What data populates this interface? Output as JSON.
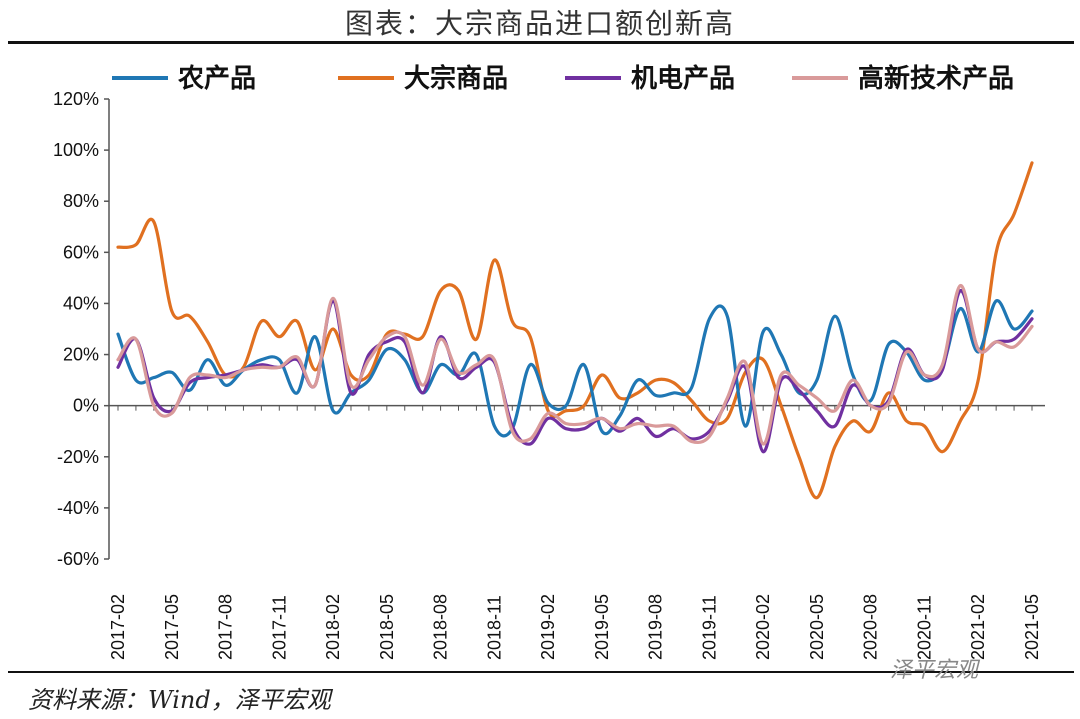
{
  "title": "图表：大宗商品进口额创新高",
  "source": "资料来源：Wind，泽平宏观",
  "watermark": "泽平宏观",
  "chart_data": {
    "type": "line",
    "title": "图表：大宗商品进口额创新高",
    "xlabel": "",
    "ylabel": "",
    "ylim": [
      -60,
      120
    ],
    "y_ticks": [
      "120%",
      "100%",
      "80%",
      "60%",
      "40%",
      "20%",
      "0%",
      "-20%",
      "-40%",
      "-60%"
    ],
    "y_tick_values": [
      120,
      100,
      80,
      60,
      40,
      20,
      0,
      -20,
      -40,
      -60
    ],
    "x_tick_labels": [
      "2017-02",
      "2017-05",
      "2017-08",
      "2017-11",
      "2018-02",
      "2018-05",
      "2018-08",
      "2018-11",
      "2019-02",
      "2019-05",
      "2019-08",
      "2019-11",
      "2020-02",
      "2020-05",
      "2020-08",
      "2020-11",
      "2021-02",
      "2021-05"
    ],
    "legend_placement": "top",
    "grid": false,
    "x": [
      "2017-02",
      "2017-03",
      "2017-04",
      "2017-05",
      "2017-06",
      "2017-07",
      "2017-08",
      "2017-09",
      "2017-10",
      "2017-11",
      "2017-12",
      "2018-01",
      "2018-02",
      "2018-03",
      "2018-04",
      "2018-05",
      "2018-06",
      "2018-07",
      "2018-08",
      "2018-09",
      "2018-10",
      "2018-11",
      "2018-12",
      "2019-01",
      "2019-02",
      "2019-03",
      "2019-04",
      "2019-05",
      "2019-06",
      "2019-07",
      "2019-08",
      "2019-09",
      "2019-10",
      "2019-11",
      "2019-12",
      "2020-01",
      "2020-02",
      "2020-03",
      "2020-04",
      "2020-05",
      "2020-06",
      "2020-07",
      "2020-08",
      "2020-09",
      "2020-10",
      "2020-11",
      "2020-12",
      "2021-01",
      "2021-02",
      "2021-03",
      "2021-04",
      "2021-05"
    ],
    "series": [
      {
        "name": "农产品",
        "color": "#1f77b4",
        "values": [
          28,
          10,
          11,
          13,
          6,
          18,
          8,
          14,
          18,
          18,
          5,
          27,
          -2,
          5,
          10,
          22,
          18,
          5,
          16,
          12,
          20,
          -8,
          -9,
          16,
          1,
          0,
          16,
          -10,
          -4,
          10,
          4,
          5,
          7,
          34,
          35,
          -8,
          29,
          20,
          5,
          10,
          35,
          12,
          2,
          24,
          21,
          10,
          15,
          38,
          21,
          41,
          30,
          37
        ]
      },
      {
        "name": "大宗商品",
        "color": "#e07020",
        "values": [
          62,
          63,
          72,
          37,
          35,
          25,
          12,
          15,
          33,
          27,
          33,
          14,
          30,
          12,
          12,
          28,
          28,
          27,
          45,
          45,
          26,
          57,
          33,
          27,
          -2,
          -2,
          0,
          12,
          3,
          5,
          10,
          9,
          2,
          -6,
          -5,
          13,
          18,
          0,
          -20,
          -36,
          -16,
          -6,
          -10,
          5,
          -6,
          -8,
          -18,
          -6,
          10,
          60,
          75,
          95
        ]
      },
      {
        "name": "机电产品",
        "color": "#7030a0",
        "values": [
          15,
          26,
          3,
          -2,
          9,
          11,
          12,
          14,
          16,
          15,
          18,
          8,
          41,
          5,
          20,
          25,
          25,
          5,
          27,
          11,
          15,
          17,
          -8,
          -15,
          -5,
          -9,
          -9,
          -5,
          -10,
          -5,
          -12,
          -9,
          -13,
          -10,
          2,
          15,
          -18,
          10,
          6,
          -2,
          -8,
          8,
          0,
          2,
          22,
          12,
          14,
          45,
          22,
          25,
          26,
          34
        ]
      },
      {
        "name": "高新技术产品",
        "color": "#d99a9a",
        "values": [
          18,
          26,
          0,
          -3,
          11,
          12,
          11,
          14,
          15,
          15,
          19,
          8,
          42,
          8,
          18,
          27,
          27,
          8,
          26,
          13,
          16,
          18,
          -10,
          -13,
          -3,
          -7,
          -7,
          -5,
          -9,
          -7,
          -8,
          -8,
          -14,
          -12,
          3,
          17,
          -15,
          12,
          8,
          3,
          -2,
          10,
          0,
          1,
          21,
          12,
          16,
          47,
          22,
          25,
          23,
          31
        ]
      }
    ]
  }
}
